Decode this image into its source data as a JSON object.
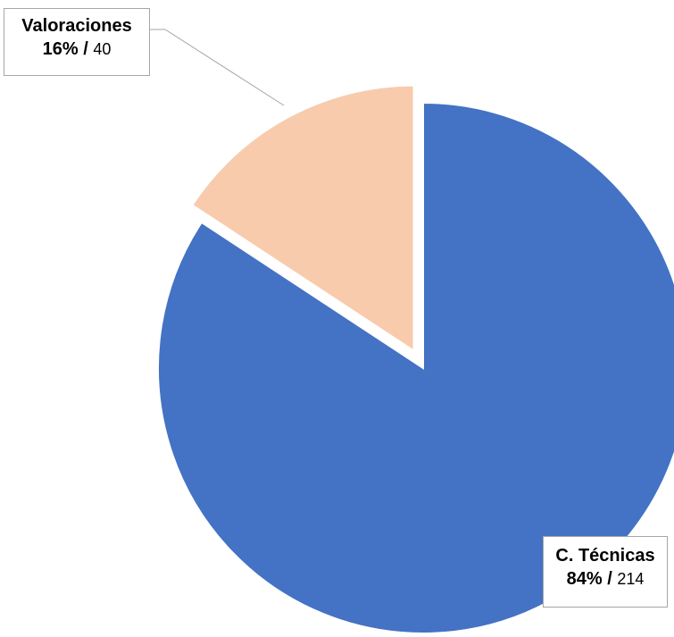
{
  "chart_data": {
    "type": "pie",
    "categories": [
      "Valoraciones",
      "C. Técnicas"
    ],
    "values": [
      40,
      214
    ],
    "percent_labels": [
      "16%",
      "84%"
    ],
    "separator": " / ",
    "colors": [
      "#F8CBAD",
      "#4472C4"
    ],
    "exploded": [
      "Valoraciones"
    ]
  }
}
